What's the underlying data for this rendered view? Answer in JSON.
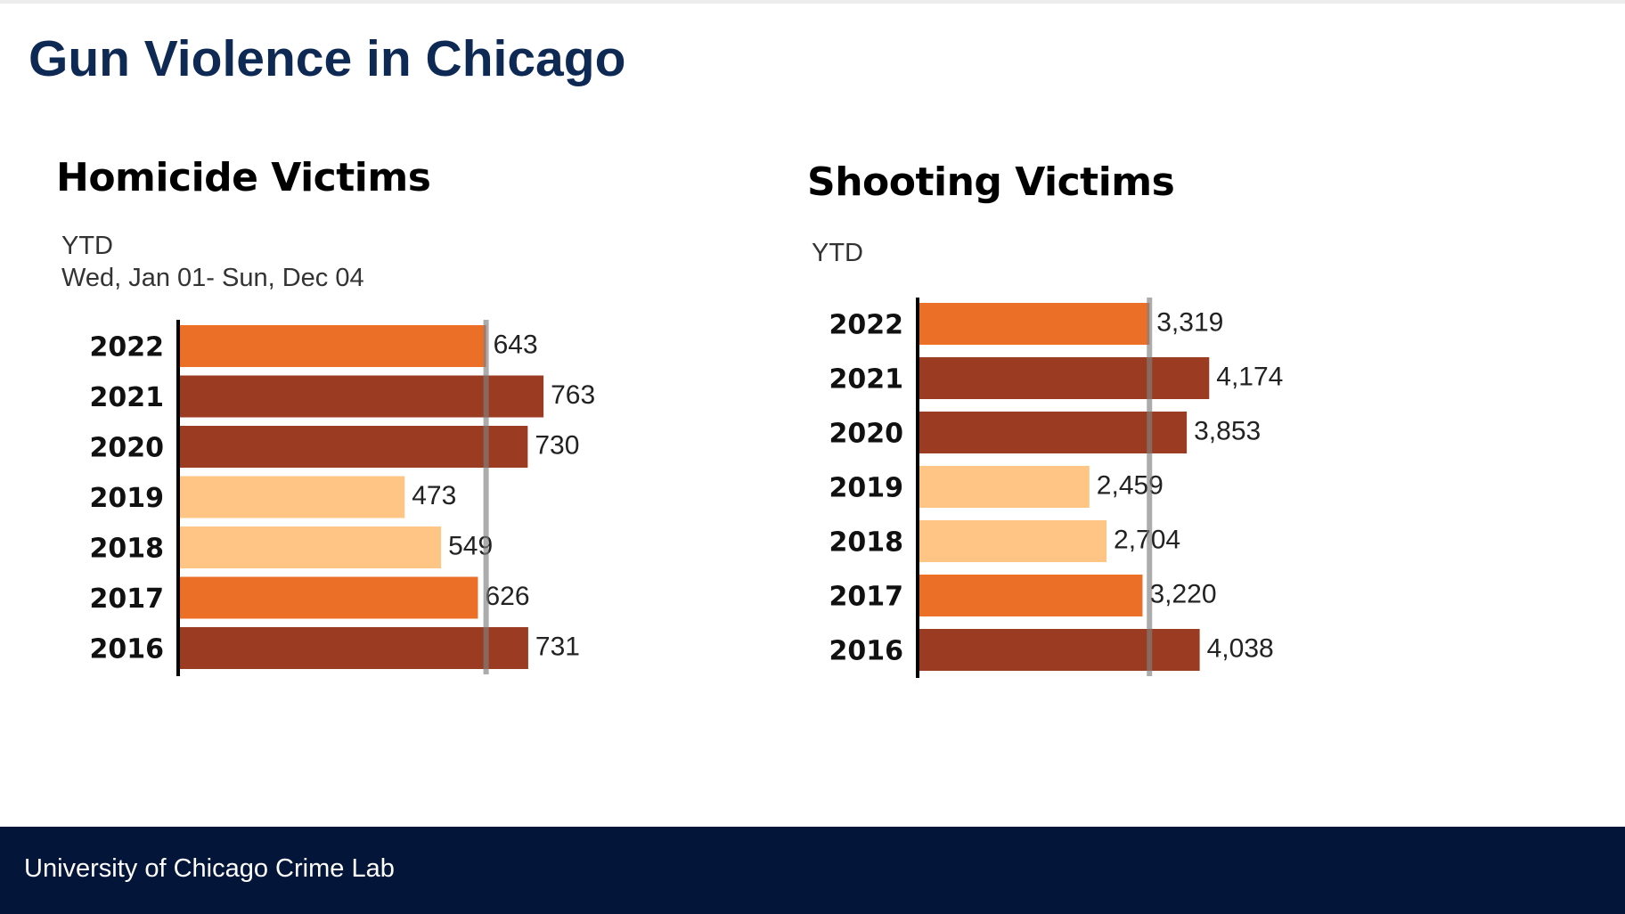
{
  "page": {
    "title": "Gun Violence in Chicago",
    "footer": "University of Chicago Crime Lab"
  },
  "colors": {
    "title": "#0e2954",
    "footer_background": "#031639",
    "bar_dark": "#9b3c22",
    "bar_mid": "#eb6f27",
    "bar_light": "#fec584",
    "reference_line": "#a6a6a6"
  },
  "chart_data": [
    {
      "type": "bar",
      "orientation": "horizontal",
      "title": "Homicide Victims",
      "subtitle_lines": [
        "YTD",
        "Wed, Jan 01- Sun, Dec 04"
      ],
      "categories": [
        "2022",
        "2021",
        "2020",
        "2019",
        "2018",
        "2017",
        "2016"
      ],
      "values": [
        643,
        763,
        730,
        473,
        549,
        626,
        731
      ],
      "value_labels": [
        "643",
        "763",
        "730",
        "473",
        "549",
        "626",
        "731"
      ],
      "bar_colors": [
        "#eb6f27",
        "#9b3c22",
        "#9b3c22",
        "#fec584",
        "#fec584",
        "#eb6f27",
        "#9b3c22"
      ],
      "reference_value": 643,
      "xlim": [
        0,
        800
      ],
      "grid": false,
      "legend": "none"
    },
    {
      "type": "bar",
      "orientation": "horizontal",
      "title": "Shooting Victims",
      "subtitle_lines": [
        "YTD"
      ],
      "categories": [
        "2022",
        "2021",
        "2020",
        "2019",
        "2018",
        "2017",
        "2016"
      ],
      "values": [
        3319,
        4174,
        3853,
        2459,
        2704,
        3220,
        4038
      ],
      "value_labels": [
        "3,319",
        "4,174",
        "3,853",
        "2,459",
        "2,704",
        "3,220",
        "4,038"
      ],
      "bar_colors": [
        "#eb6f27",
        "#9b3c22",
        "#9b3c22",
        "#fec584",
        "#fec584",
        "#eb6f27",
        "#9b3c22"
      ],
      "reference_value": 3319,
      "xlim": [
        0,
        4400
      ],
      "grid": false,
      "legend": "none"
    }
  ]
}
